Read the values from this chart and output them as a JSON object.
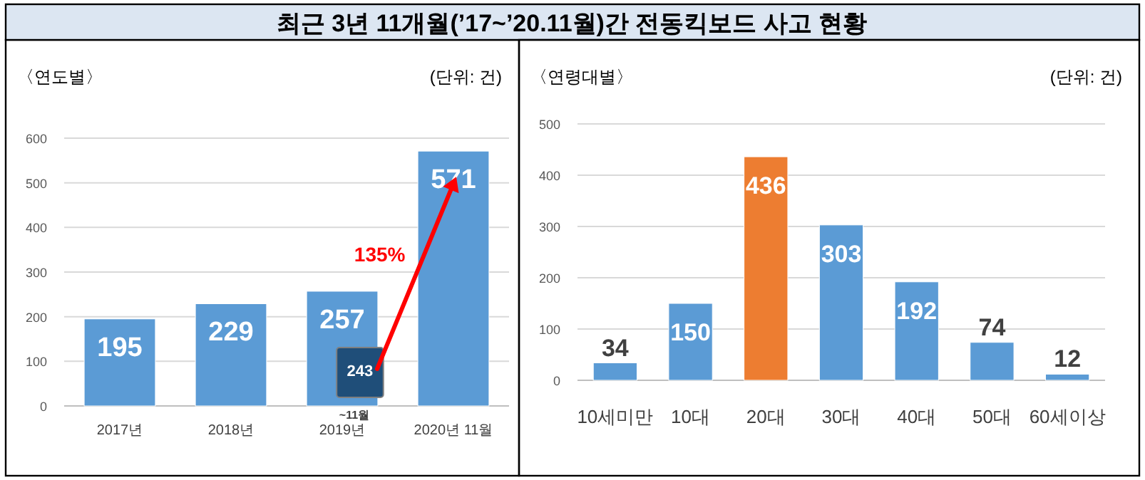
{
  "chart_data": [
    {
      "type": "bar",
      "title": "최근 3년 11개월(’17~’20.11월)간 전동킥보드 사고 현황",
      "subtitle": "〈연도별〉",
      "ylabel": "(단위: 건)",
      "categories": [
        "2017년",
        "2018년",
        "2019년",
        "2020년 11월"
      ],
      "values": [
        195,
        229,
        257,
        571
      ],
      "color": "#5b9bd5",
      "data_labels": true,
      "ylim": [
        0,
        600
      ],
      "yticks": [
        0,
        100,
        200,
        300,
        400,
        500,
        600
      ],
      "grid": "y",
      "annotations": [
        "243",
        "~11월",
        "135%"
      ]
    },
    {
      "type": "bar",
      "subtitle": "〈연령대별〉",
      "ylabel": "(단위: 건)",
      "categories": [
        "10세미만",
        "10대",
        "20대",
        "30대",
        "40대",
        "50대",
        "60세이상"
      ],
      "values": [
        34,
        150,
        436,
        303,
        192,
        74,
        12
      ],
      "colors": [
        "#5b9bd5",
        "#5b9bd5",
        "#ed7d31",
        "#5b9bd5",
        "#5b9bd5",
        "#5b9bd5",
        "#5b9bd5"
      ],
      "data_labels": true,
      "ylim": [
        0,
        500
      ],
      "yticks": [
        0,
        100,
        200,
        300,
        400,
        500
      ],
      "grid": "y"
    }
  ]
}
